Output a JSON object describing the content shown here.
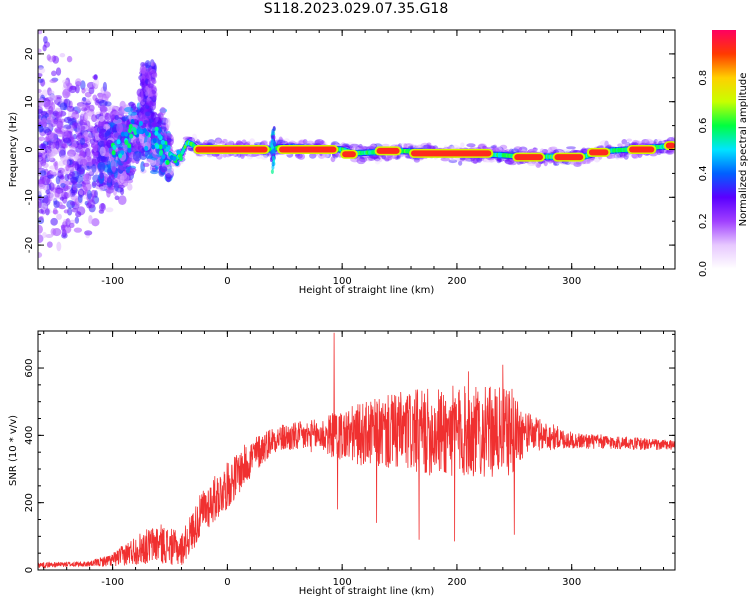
{
  "title": "S118.2023.029.07.35.G18",
  "colors": {
    "snr_line": "#f03030",
    "colormap": [
      "#ffffff",
      "#e7c8ff",
      "#a040ff",
      "#5a00ff",
      "#0060ff",
      "#00e5ff",
      "#00ff40",
      "#c8ff00",
      "#ffd000",
      "#ff3a00",
      "#ff0060"
    ]
  },
  "chart_data": [
    {
      "type": "heatmap",
      "title": "",
      "xlabel": "Height of straight line (km)",
      "ylabel": "Frequency (Hz)",
      "xlim": [
        -165,
        390
      ],
      "ylim": [
        -25,
        25
      ],
      "xticks": [
        -100,
        0,
        100,
        200,
        300
      ],
      "yticks": [
        -20,
        -10,
        0,
        10,
        20
      ],
      "colorbar": {
        "label": "Normalized spectral amplitude",
        "range": [
          0,
          1
        ],
        "ticks": [
          "0.0",
          "0.2",
          "0.4",
          "0.6",
          "0.8"
        ]
      },
      "ridge": [
        {
          "x": -165,
          "y": 0
        },
        {
          "x": -120,
          "y": 0
        },
        {
          "x": -90,
          "y": 0.5
        },
        {
          "x": -80,
          "y": 4
        },
        {
          "x": -70,
          "y": 3
        },
        {
          "x": -60,
          "y": 2
        },
        {
          "x": -50,
          "y": -1
        },
        {
          "x": -45,
          "y": -2
        },
        {
          "x": -40,
          "y": -1
        },
        {
          "x": -35,
          "y": 1.5
        },
        {
          "x": -30,
          "y": 1
        },
        {
          "x": -25,
          "y": 0
        },
        {
          "x": 40,
          "y": 0
        },
        {
          "x": 45,
          "y": 0.5
        },
        {
          "x": 100,
          "y": 0
        },
        {
          "x": 110,
          "y": -0.8
        },
        {
          "x": 150,
          "y": -0.3
        },
        {
          "x": 200,
          "y": -0.8
        },
        {
          "x": 240,
          "y": -1.2
        },
        {
          "x": 260,
          "y": -1.5
        },
        {
          "x": 310,
          "y": -1.5
        },
        {
          "x": 330,
          "y": -0.3
        },
        {
          "x": 350,
          "y": 0
        },
        {
          "x": 390,
          "y": 0.8
        }
      ],
      "hot_segments": [
        {
          "x0": -28,
          "x1": 35,
          "y": 0
        },
        {
          "x0": 45,
          "x1": 95,
          "y": 0
        },
        {
          "x0": 100,
          "x1": 112,
          "y": -1
        },
        {
          "x0": 130,
          "x1": 150,
          "y": -0.3
        },
        {
          "x0": 160,
          "x1": 230,
          "y": -0.8
        },
        {
          "x0": 250,
          "x1": 275,
          "y": -1.6
        },
        {
          "x0": 285,
          "x1": 310,
          "y": -1.6
        },
        {
          "x0": 315,
          "x1": 332,
          "y": -0.6
        },
        {
          "x0": 350,
          "x1": 372,
          "y": 0
        },
        {
          "x0": 382,
          "x1": 390,
          "y": 0.8
        }
      ]
    },
    {
      "type": "line",
      "title": "",
      "xlabel": "Height of straight line (km)",
      "ylabel": "SNR (10 * v/v)",
      "xlim": [
        -165,
        390
      ],
      "ylim": [
        0,
        710
      ],
      "xticks": [
        -100,
        0,
        100,
        200,
        300
      ],
      "yticks": [
        0,
        200,
        400,
        600
      ],
      "envelope": [
        {
          "x": -165,
          "base": 15,
          "noise": 8
        },
        {
          "x": -120,
          "base": 18,
          "noise": 8
        },
        {
          "x": -100,
          "base": 30,
          "noise": 20
        },
        {
          "x": -80,
          "base": 60,
          "noise": 45
        },
        {
          "x": -60,
          "base": 80,
          "noise": 60
        },
        {
          "x": -40,
          "base": 60,
          "noise": 50
        },
        {
          "x": -30,
          "base": 120,
          "noise": 60
        },
        {
          "x": -20,
          "base": 180,
          "noise": 70
        },
        {
          "x": 0,
          "base": 250,
          "noise": 70
        },
        {
          "x": 20,
          "base": 330,
          "noise": 60
        },
        {
          "x": 40,
          "base": 390,
          "noise": 40
        },
        {
          "x": 80,
          "base": 400,
          "noise": 50
        },
        {
          "x": 100,
          "base": 400,
          "noise": 80
        },
        {
          "x": 150,
          "base": 410,
          "noise": 120
        },
        {
          "x": 200,
          "base": 410,
          "noise": 140
        },
        {
          "x": 250,
          "base": 410,
          "noise": 130
        },
        {
          "x": 260,
          "base": 410,
          "noise": 60
        },
        {
          "x": 300,
          "base": 385,
          "noise": 25
        },
        {
          "x": 390,
          "base": 370,
          "noise": 15
        }
      ],
      "spikes": [
        {
          "x": 93,
          "y": 705
        },
        {
          "x": 240,
          "y": 610
        },
        {
          "x": 210,
          "y": 590
        },
        {
          "x": 96,
          "y": 180
        },
        {
          "x": 198,
          "y": 85
        },
        {
          "x": 167,
          "y": 90
        },
        {
          "x": 250,
          "y": 105
        },
        {
          "x": 130,
          "y": 140
        }
      ]
    }
  ]
}
